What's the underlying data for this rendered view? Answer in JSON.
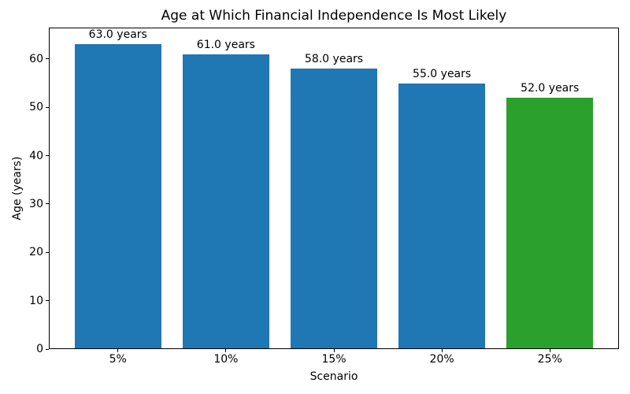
{
  "chart_data": {
    "type": "bar",
    "title": "Age at Which Financial Independence Is Most Likely",
    "xlabel": "Scenario",
    "ylabel": "Age (years)",
    "categories": [
      "5%",
      "10%",
      "15%",
      "20%",
      "25%"
    ],
    "values": [
      63.0,
      61.0,
      58.0,
      55.0,
      52.0
    ],
    "value_labels": [
      "63.0 years",
      "61.0 years",
      "58.0 years",
      "55.0 years",
      "52.0 years"
    ],
    "bar_colors": [
      "#1f77b4",
      "#1f77b4",
      "#1f77b4",
      "#1f77b4",
      "#2ca02c"
    ],
    "ylim": [
      0,
      66.5
    ],
    "yticks": [
      0,
      10,
      20,
      30,
      40,
      50,
      60
    ],
    "grid": false,
    "legend": null,
    "bar_relative_width": 0.8,
    "spine_color": "#000000",
    "background_color": "#ffffff"
  }
}
